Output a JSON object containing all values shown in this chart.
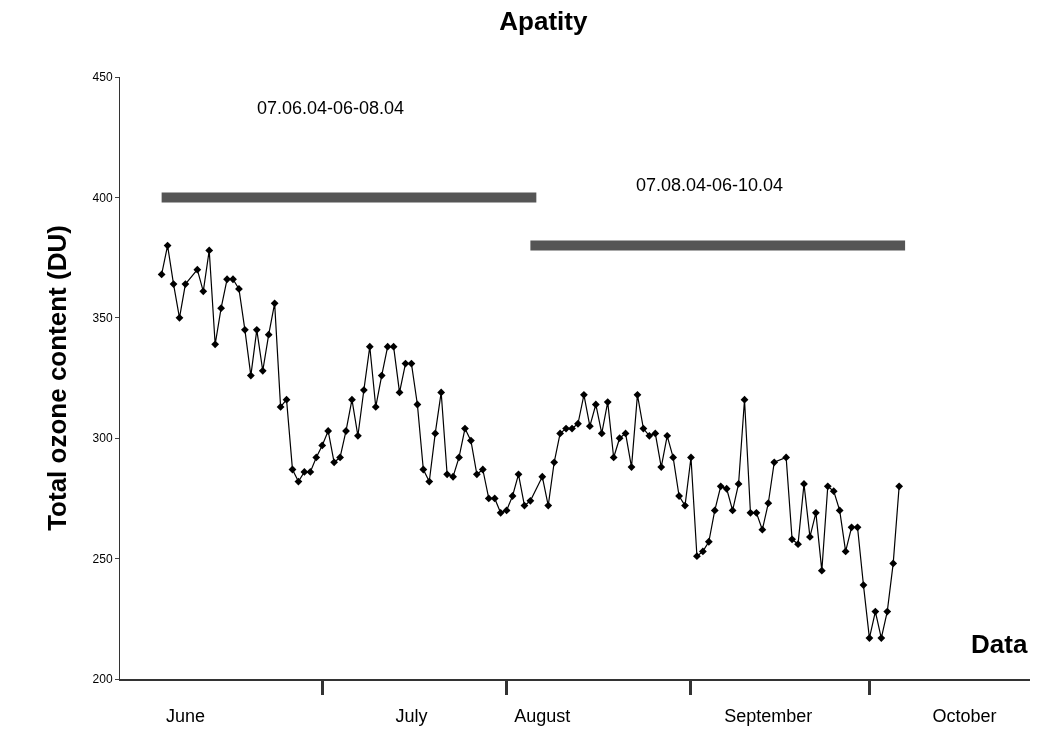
{
  "chart_data": {
    "type": "line",
    "title": "Apatity",
    "xlabel": "Data",
    "ylabel": "Total ozone content (DU)",
    "series": [
      {
        "color": "#000000",
        "marker": "diamond",
        "x": [
          "--06-04",
          "--06-05",
          "--06-06",
          "--06-07",
          "--06-08",
          "--06-10",
          "--06-11",
          "--06-12",
          "--06-13",
          "--06-14",
          "--06-15",
          "--06-16",
          "--06-17",
          "--06-18",
          "--06-19",
          "--06-20",
          "--06-21",
          "--06-22",
          "--06-23",
          "--06-24",
          "--06-25",
          "--06-26",
          "--06-27",
          "--06-28",
          "--06-29",
          "--06-30",
          "--07-01",
          "--07-02",
          "--07-03",
          "--07-04",
          "--07-05",
          "--07-06",
          "--07-07",
          "--07-08",
          "--07-09",
          "--07-10",
          "--07-11",
          "--07-12",
          "--07-13",
          "--07-14",
          "--07-15",
          "--07-16",
          "--07-17",
          "--07-18",
          "--07-19",
          "--07-20",
          "--07-21",
          "--07-22",
          "--07-23",
          "--07-24",
          "--07-25",
          "--07-26",
          "--07-27",
          "--07-28",
          "--07-29",
          "--07-30",
          "--07-31",
          "--08-01",
          "--08-02",
          "--08-03",
          "--08-04",
          "--08-05",
          "--08-07",
          "--08-08",
          "--08-09",
          "--08-10",
          "--08-11",
          "--08-12",
          "--08-13",
          "--08-14",
          "--08-15",
          "--08-16",
          "--08-17",
          "--08-18",
          "--08-19",
          "--08-20",
          "--08-21",
          "--08-22",
          "--08-23",
          "--08-24",
          "--08-25",
          "--08-26",
          "--08-27",
          "--08-28",
          "--08-29",
          "--08-30",
          "--08-31",
          "--09-01",
          "--09-02",
          "--09-03",
          "--09-04",
          "--09-05",
          "--09-06",
          "--09-07",
          "--09-08",
          "--09-09",
          "--09-10",
          "--09-11",
          "--09-12",
          "--09-13",
          "--09-14",
          "--09-15",
          "--09-17",
          "--09-18",
          "--09-19",
          "--09-20",
          "--09-21",
          "--09-22",
          "--09-23",
          "--09-24",
          "--09-25",
          "--09-26",
          "--09-27",
          "--09-28",
          "--09-29",
          "--09-30",
          "--10-01",
          "--10-02",
          "--10-03",
          "--10-04",
          "--10-05",
          "--10-06"
        ],
        "values": [
          368,
          380,
          364,
          350,
          364,
          370,
          361,
          378,
          339,
          354,
          366,
          366,
          362,
          345,
          326,
          345,
          328,
          343,
          356,
          313,
          316,
          287,
          282,
          286,
          286,
          292,
          297,
          303,
          290,
          292,
          303,
          316,
          301,
          320,
          338,
          313,
          326,
          338,
          338,
          319,
          331,
          331,
          314,
          287,
          282,
          302,
          319,
          285,
          284,
          292,
          304,
          299,
          285,
          287,
          275,
          275,
          269,
          270,
          276,
          285,
          272,
          274,
          284,
          272,
          290,
          302,
          304,
          304,
          306,
          318,
          305,
          314,
          302,
          315,
          292,
          300,
          302,
          288,
          318,
          304,
          301,
          302,
          288,
          301,
          292,
          276,
          272,
          292,
          251,
          253,
          257,
          270,
          280,
          279,
          270,
          281,
          316,
          269,
          269,
          262,
          273,
          290,
          292,
          258,
          256,
          281,
          259,
          269,
          245,
          280,
          278,
          270,
          253,
          263,
          263,
          239,
          217,
          228,
          217,
          228,
          248,
          280
        ]
      },
      {
        "color": "#555555",
        "marker": "none",
        "x": [
          "--06-04",
          "--08-06"
        ],
        "values": [
          400,
          400
        ]
      },
      {
        "color": "#555555",
        "marker": "none",
        "x": [
          "--08-05",
          "--10-07"
        ],
        "values": [
          380,
          380
        ]
      }
    ],
    "annotations": [
      "07.06.04-06-08.04",
      "07.08.04-06-10.04"
    ],
    "xlim": [
      "--05-28",
      "--10-28"
    ],
    "xticks": [
      {
        "value": "--07-01",
        "label": null
      },
      {
        "value": "--08-01",
        "label": null
      },
      {
        "value": "--09-01",
        "label": null
      },
      {
        "value": "--10-01",
        "label": null
      },
      {
        "value": "--06-08",
        "label": "June"
      },
      {
        "value": "--07-16",
        "label": "July"
      },
      {
        "value": "--08-07",
        "label": "August"
      },
      {
        "value": "--09-14",
        "label": "September"
      },
      {
        "value": "--10-17",
        "label": "October"
      }
    ],
    "ylim": [
      200,
      450
    ],
    "yticks": [
      200,
      250,
      300,
      350,
      400,
      450
    ]
  }
}
